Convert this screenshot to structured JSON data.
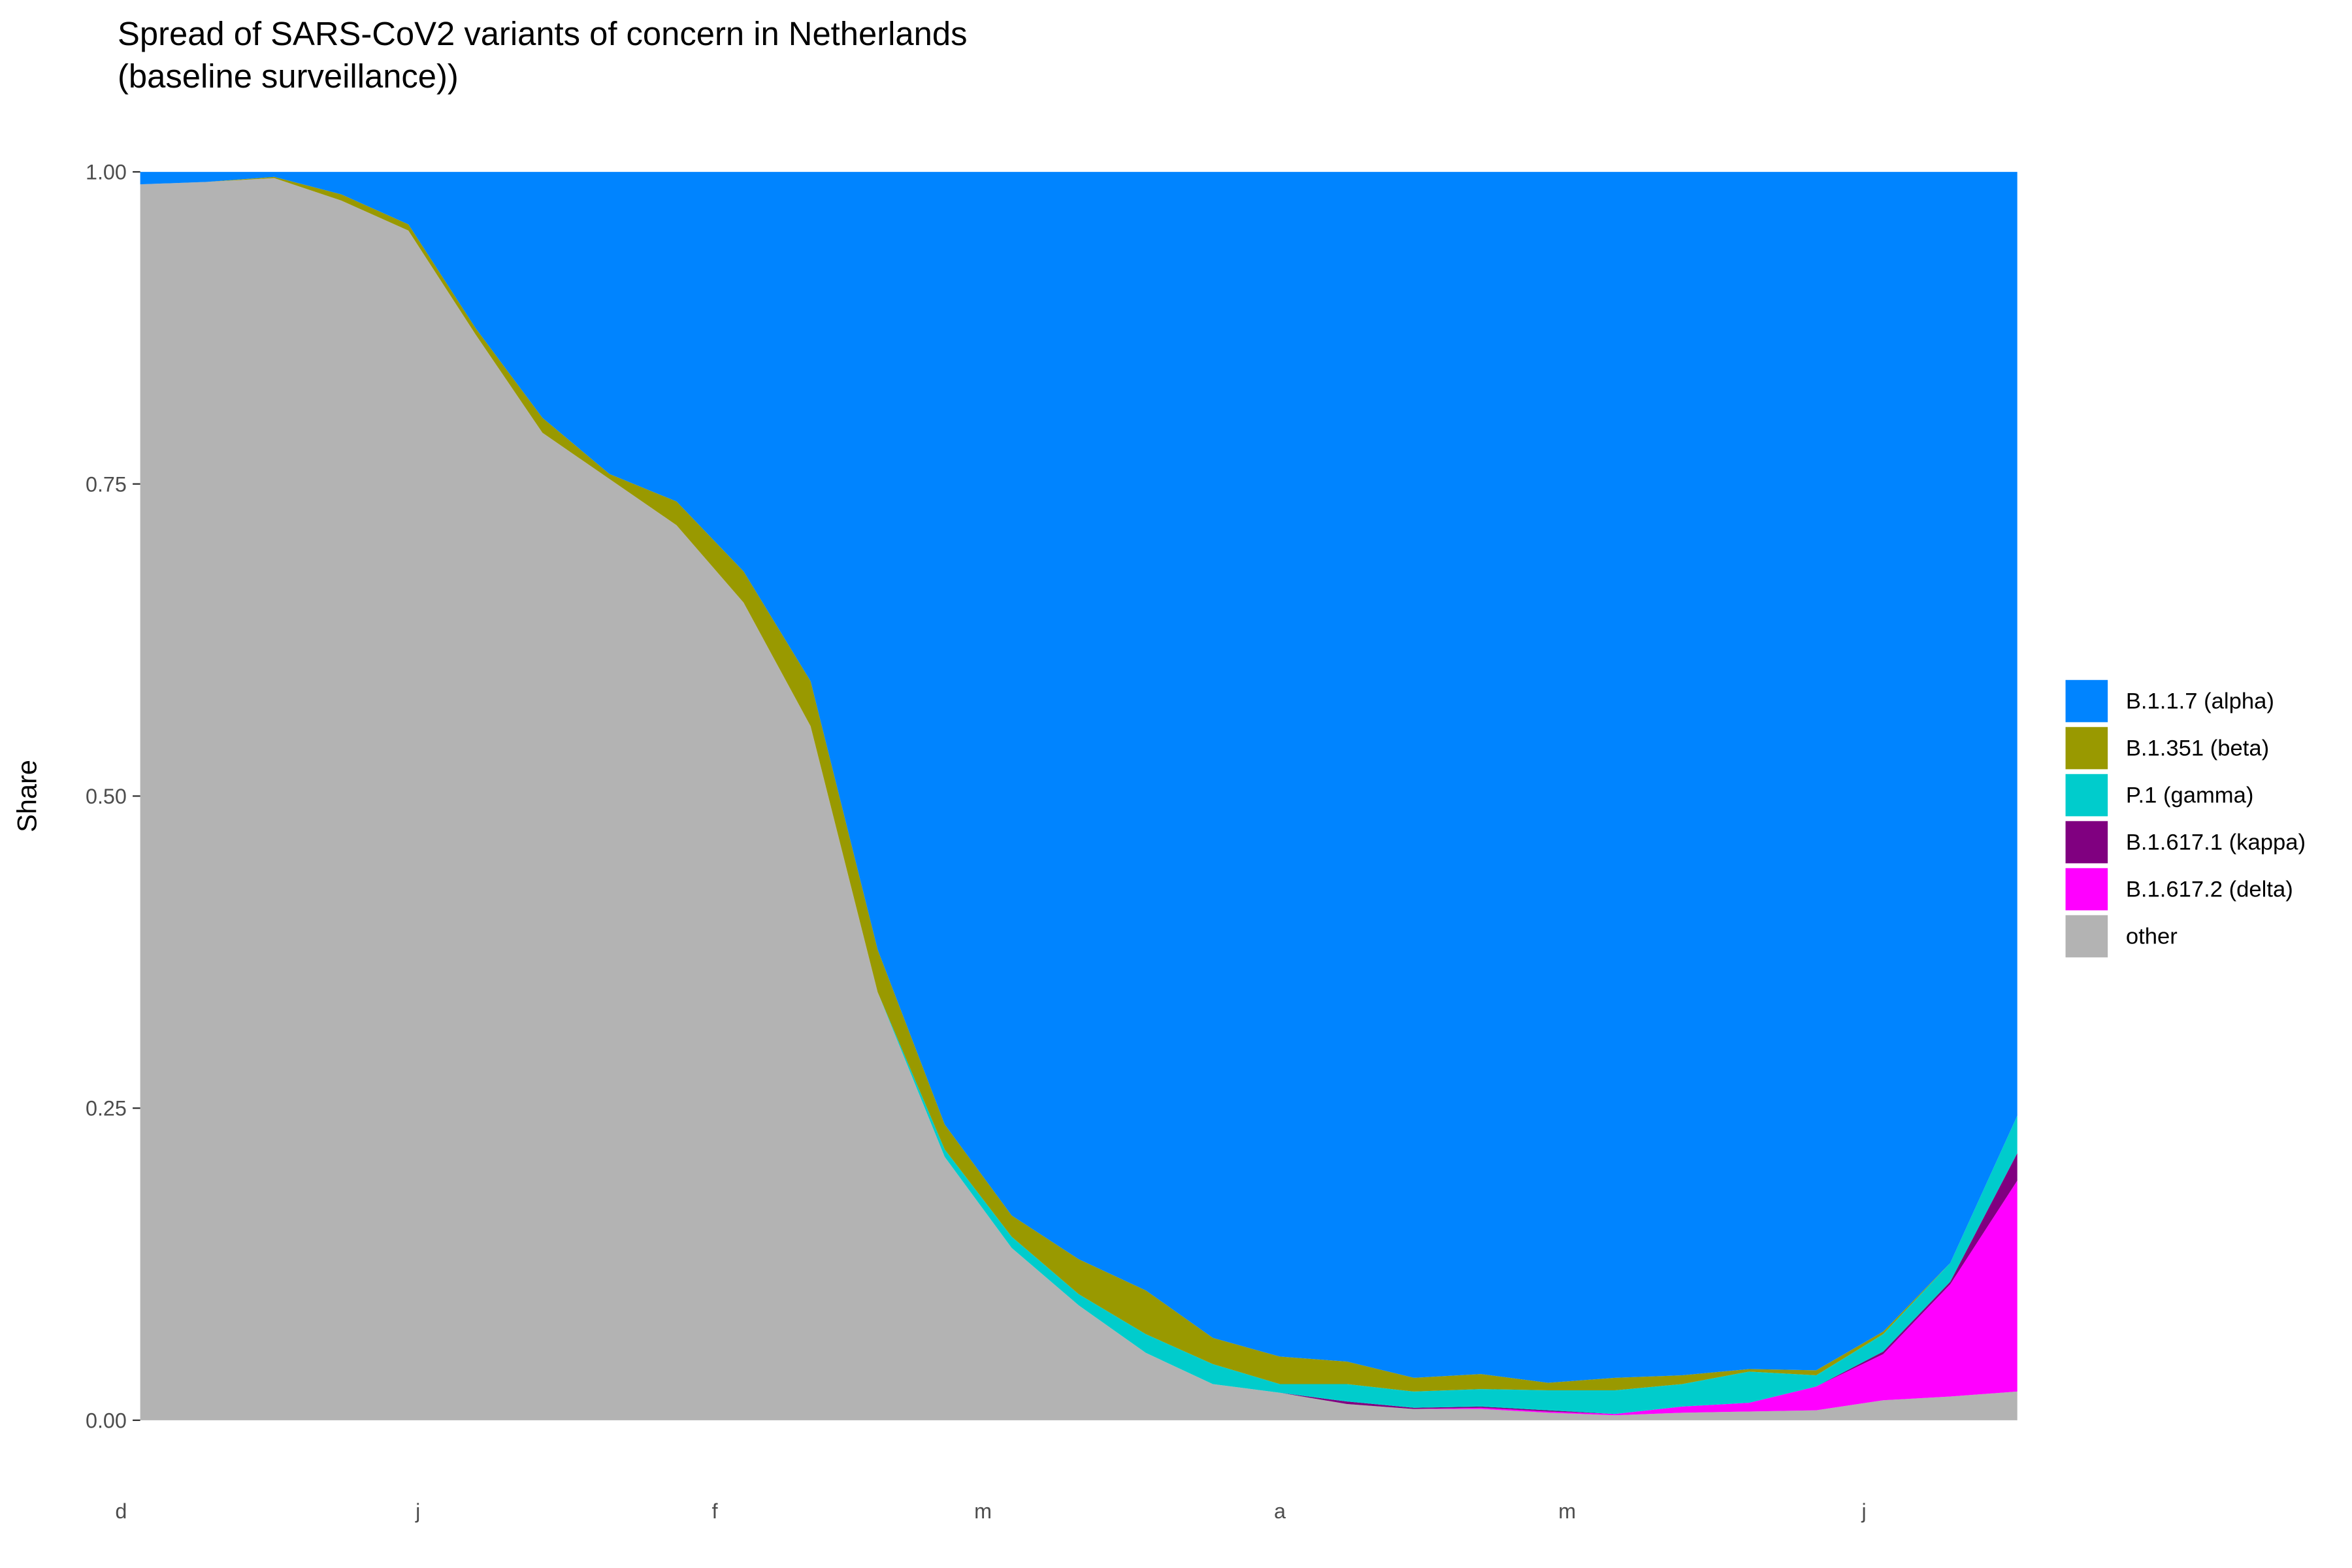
{
  "chart_data": {
    "type": "stacked-area",
    "title": "Spread of SARS-CoV2 variants of concern in Netherlands",
    "subtitle": "(baseline surveillance))",
    "y_label": "Share",
    "x": [
      2,
      9,
      16,
      23,
      30,
      37,
      44,
      51,
      58,
      65,
      72,
      79,
      86,
      93,
      100,
      107,
      114,
      121,
      128,
      135,
      142,
      149,
      156,
      163,
      170,
      177,
      184,
      191,
      198
    ],
    "xlim": [
      2,
      198
    ],
    "xticks": [
      {
        "value": 0,
        "label": "d"
      },
      {
        "value": 31,
        "label": "j"
      },
      {
        "value": 62,
        "label": "f"
      },
      {
        "value": 90,
        "label": "m"
      },
      {
        "value": 121,
        "label": "a"
      },
      {
        "value": 151,
        "label": "m"
      },
      {
        "value": 182,
        "label": "j"
      }
    ],
    "ylim": [
      0,
      1
    ],
    "yticks": [
      {
        "value": 0,
        "label": "0.00"
      },
      {
        "value": 0.25,
        "label": "0.25"
      },
      {
        "value": 0.5,
        "label": "0.50"
      },
      {
        "value": 0.75,
        "label": "0.75"
      },
      {
        "value": 1,
        "label": "1.00"
      }
    ],
    "series": [
      {
        "name": "B.1.1.7 (alpha)",
        "color": "#0084ff",
        "values": [
          0.01,
          0.008,
          0.004,
          0.018,
          0.042,
          0.125,
          0.197,
          0.242,
          0.264,
          0.32,
          0.408,
          0.623,
          0.763,
          0.836,
          0.871,
          0.896,
          0.934,
          0.949,
          0.953,
          0.966,
          0.963,
          0.97,
          0.966,
          0.964,
          0.959,
          0.96,
          0.929,
          0.874,
          0.756
        ]
      },
      {
        "name": "B.1.351 (beta)",
        "color": "#999900",
        "values": [
          0,
          0,
          0.001,
          0.005,
          0.005,
          0.005,
          0.012,
          0.004,
          0.019,
          0.025,
          0.036,
          0.034,
          0.02,
          0.017,
          0.028,
          0.035,
          0.021,
          0.022,
          0.018,
          0.011,
          0.012,
          0.006,
          0.01,
          0.007,
          0.002,
          0.004,
          0.002,
          0,
          0
        ]
      },
      {
        "name": "P.1 (gamma)",
        "color": "#00cccc",
        "values": [
          0,
          0,
          0,
          0,
          0,
          0,
          0,
          0,
          0,
          0,
          0,
          0,
          0.006,
          0.009,
          0.009,
          0.015,
          0.016,
          0.007,
          0.014,
          0.013,
          0.014,
          0.016,
          0.019,
          0.018,
          0.025,
          0.009,
          0.014,
          0.015,
          0.03
        ]
      },
      {
        "name": "B.1.617.1 (kappa)",
        "color": "#800080",
        "values": [
          0,
          0,
          0,
          0,
          0,
          0,
          0,
          0,
          0,
          0,
          0,
          0,
          0,
          0,
          0,
          0,
          0,
          0,
          0.002,
          0.001,
          0.001,
          0.001,
          0,
          0,
          0,
          0,
          0.002,
          0.002,
          0.022
        ]
      },
      {
        "name": "B.1.617.2 (delta)",
        "color": "#ff00ff",
        "values": [
          0,
          0,
          0,
          0,
          0,
          0,
          0,
          0,
          0,
          0,
          0,
          0,
          0,
          0,
          0,
          0,
          0,
          0,
          0,
          0,
          0.001,
          0.001,
          0.001,
          0.005,
          0.007,
          0.019,
          0.037,
          0.09,
          0.169
        ]
      },
      {
        "name": "other",
        "color": "#b3b3b3",
        "values": [
          0.99,
          0.992,
          0.995,
          0.977,
          0.953,
          0.87,
          0.791,
          0.754,
          0.717,
          0.655,
          0.556,
          0.343,
          0.211,
          0.138,
          0.092,
          0.054,
          0.029,
          0.022,
          0.013,
          0.009,
          0.009,
          0.006,
          0.004,
          0.006,
          0.007,
          0.008,
          0.016,
          0.019,
          0.023
        ]
      }
    ]
  }
}
